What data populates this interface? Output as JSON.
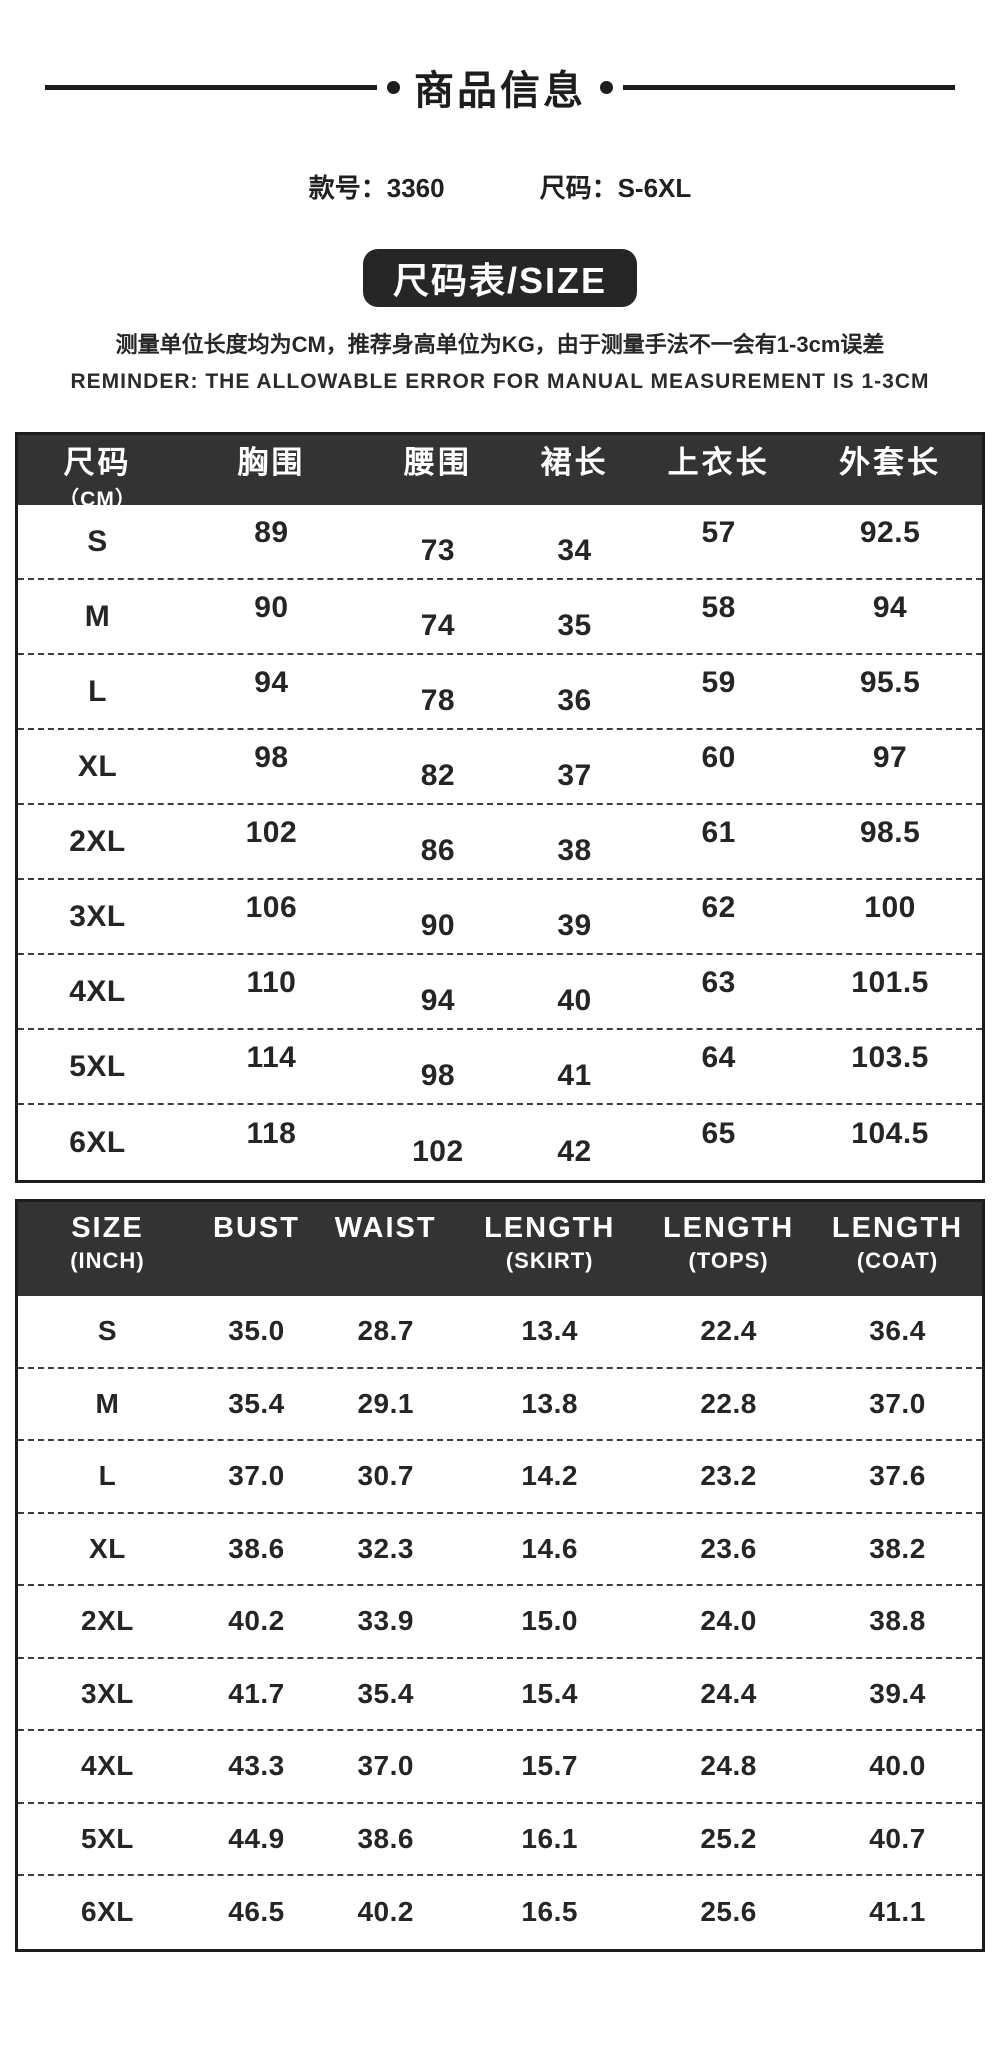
{
  "header": {
    "section_title": "商品信息",
    "model_label": "款号：",
    "model_value": "3360",
    "size_label": "尺码：",
    "size_value": "S-6XL",
    "badge": "尺码表/SIZE",
    "note_cn": "测量单位长度均为CM，推荐身高单位为KG，由于测量手法不一会有1-3cm误差",
    "note_en": "REMINDER: THE ALLOWABLE ERROR FOR MANUAL MEASUREMENT IS 1-3CM"
  },
  "cm_table": {
    "headers": [
      {
        "main": "尺码",
        "sub": "（CM）"
      },
      {
        "main": "胸围"
      },
      {
        "main": "腰围"
      },
      {
        "main": "裙长"
      },
      {
        "main": "上衣长"
      },
      {
        "main": "外套长"
      }
    ],
    "rows": [
      [
        "S",
        "89",
        "73",
        "34",
        "57",
        "92.5"
      ],
      [
        "M",
        "90",
        "74",
        "35",
        "58",
        "94"
      ],
      [
        "L",
        "94",
        "78",
        "36",
        "59",
        "95.5"
      ],
      [
        "XL",
        "98",
        "82",
        "37",
        "60",
        "97"
      ],
      [
        "2XL",
        "102",
        "86",
        "38",
        "61",
        "98.5"
      ],
      [
        "3XL",
        "106",
        "90",
        "39",
        "62",
        "100"
      ],
      [
        "4XL",
        "110",
        "94",
        "40",
        "63",
        "101.5"
      ],
      [
        "5XL",
        "114",
        "98",
        "41",
        "64",
        "103.5"
      ],
      [
        "6XL",
        "118",
        "102",
        "42",
        "65",
        "104.5"
      ]
    ]
  },
  "inch_table": {
    "headers": [
      {
        "main": "SIZE",
        "sub": "(INCH)"
      },
      {
        "main": "BUST"
      },
      {
        "main": "WAIST"
      },
      {
        "main": "LENGTH",
        "sub": "(SKIRT)"
      },
      {
        "main": "LENGTH",
        "sub": "(TOPS)"
      },
      {
        "main": "LENGTH",
        "sub": "(COAT)"
      }
    ],
    "rows": [
      [
        "S",
        "35.0",
        "28.7",
        "13.4",
        "22.4",
        "36.4"
      ],
      [
        "M",
        "35.4",
        "29.1",
        "13.8",
        "22.8",
        "37.0"
      ],
      [
        "L",
        "37.0",
        "30.7",
        "14.2",
        "23.2",
        "37.6"
      ],
      [
        "XL",
        "38.6",
        "32.3",
        "14.6",
        "23.6",
        "38.2"
      ],
      [
        "2XL",
        "40.2",
        "33.9",
        "15.0",
        "24.0",
        "38.8"
      ],
      [
        "3XL",
        "41.7",
        "35.4",
        "15.4",
        "24.4",
        "39.4"
      ],
      [
        "4XL",
        "43.3",
        "37.0",
        "15.7",
        "24.8",
        "40.0"
      ],
      [
        "5XL",
        "44.9",
        "38.6",
        "16.1",
        "25.2",
        "40.7"
      ],
      [
        "6XL",
        "46.5",
        "40.2",
        "16.5",
        "25.6",
        "41.1"
      ]
    ]
  },
  "colors": {
    "header_bg": "#333333",
    "badge_bg": "#262626",
    "ink": "#1d1d1d"
  }
}
